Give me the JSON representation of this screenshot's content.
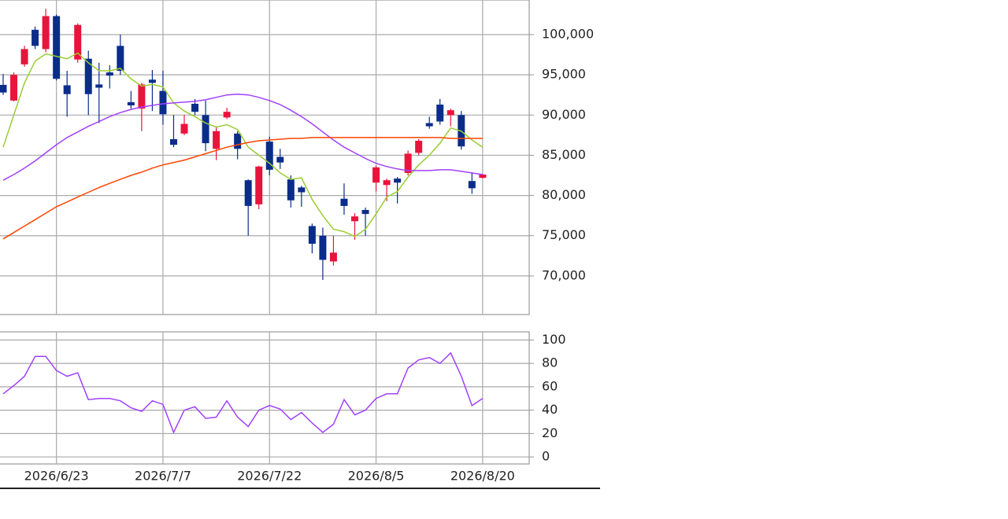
{
  "chart_data": [
    {
      "type": "candlestick",
      "up_color": "#e8143c",
      "down_color": "#0a2d8a",
      "ylim": [
        65200,
        104300
      ],
      "yticks": [
        {
          "value": 70000,
          "label": "70,000"
        },
        {
          "value": 75000,
          "label": "75,000"
        },
        {
          "value": 80000,
          "label": "80,000"
        },
        {
          "value": 85000,
          "label": "85,000"
        },
        {
          "value": 90000,
          "label": "90,000"
        },
        {
          "value": 95000,
          "label": "95,000"
        },
        {
          "value": 100000,
          "label": "100,000"
        }
      ],
      "grid": true,
      "open": [
        93750,
        91800,
        96300,
        100600,
        98200,
        102300,
        93700,
        96900,
        97000,
        93800,
        95300,
        98600,
        91600,
        90800,
        94400,
        93000,
        87000,
        87700,
        91400,
        90000,
        85800,
        89700,
        87700,
        81900,
        78900,
        86700,
        84800,
        82000,
        81000,
        76200,
        75000,
        71800,
        79600,
        76800,
        78200,
        81600,
        81300,
        82100,
        82800,
        85300,
        89000,
        91300,
        90000,
        90000,
        81800,
        82200
      ],
      "high": [
        95100,
        95300,
        98600,
        101000,
        103200,
        102500,
        95500,
        101400,
        98000,
        96500,
        96200,
        100000,
        93000,
        94000,
        95600,
        95500,
        90000,
        90000,
        92000,
        91800,
        88500,
        90900,
        88000,
        82000,
        83700,
        87300,
        85800,
        82500,
        81200,
        76500,
        76000,
        75000,
        81500,
        77800,
        78500,
        83700,
        82100,
        82300,
        85600,
        87000,
        89800,
        92000,
        90800,
        90500,
        82800,
        82700
      ],
      "low": [
        92500,
        91700,
        96000,
        98200,
        97800,
        94300,
        89800,
        96500,
        90000,
        89000,
        93300,
        95000,
        90800,
        88000,
        90500,
        88800,
        86000,
        87500,
        90000,
        85500,
        84400,
        89500,
        84500,
        75000,
        78300,
        82500,
        83300,
        78500,
        78600,
        72800,
        69500,
        71300,
        77600,
        74500,
        75000,
        80500,
        79300,
        79000,
        82500,
        85000,
        88300,
        88800,
        88600,
        85700,
        80200,
        82100
      ],
      "close": [
        92800,
        95000,
        98200,
        98600,
        102300,
        94500,
        92600,
        101200,
        92600,
        93400,
        94900,
        95500,
        91200,
        93800,
        94000,
        90100,
        86300,
        88900,
        90400,
        86500,
        88000,
        90400,
        85800,
        78700,
        83600,
        83200,
        84100,
        79400,
        80400,
        74000,
        72000,
        72900,
        78700,
        77400,
        77700,
        83500,
        81900,
        81600,
        85200,
        86800,
        88600,
        89200,
        90600,
        86100,
        80900,
        82600
      ],
      "series": [
        {
          "color": "#9acd32",
          "values": [
            86000,
            90000,
            94000,
            96700,
            97600,
            97300,
            97000,
            97700,
            96500,
            95500,
            95500,
            95800,
            94500,
            93600,
            93800,
            93500,
            91500,
            90500,
            89800,
            89000,
            88500,
            88800,
            88200,
            86000,
            85000,
            84000,
            82800,
            82000,
            82200,
            79500,
            77500,
            75800,
            75500,
            74900,
            75800,
            77700,
            79800,
            80500,
            82300,
            83800,
            85000,
            86500,
            88400,
            88000,
            86900,
            86000
          ]
        },
        {
          "color": "#a040ff",
          "values": [
            81900,
            82600,
            83400,
            84300,
            85300,
            86300,
            87200,
            87900,
            88600,
            89200,
            89800,
            90300,
            90700,
            91000,
            91200,
            91400,
            91500,
            91600,
            91700,
            91900,
            92200,
            92500,
            92600,
            92500,
            92200,
            91800,
            91300,
            90600,
            89800,
            88900,
            87900,
            86900,
            86000,
            85300,
            84600,
            84000,
            83600,
            83300,
            83100,
            83100,
            83100,
            83200,
            83200,
            83000,
            82800,
            82600
          ]
        },
        {
          "color": "#ff4500",
          "values": [
            74600,
            75400,
            76200,
            77000,
            77800,
            78600,
            79200,
            79800,
            80400,
            81000,
            81500,
            82000,
            82500,
            82900,
            83400,
            83800,
            84100,
            84400,
            84800,
            85200,
            85600,
            86000,
            86300,
            86600,
            86800,
            86900,
            87000,
            87100,
            87100,
            87200,
            87200,
            87200,
            87200,
            87200,
            87200,
            87200,
            87200,
            87200,
            87200,
            87200,
            87200,
            87200,
            87100,
            87100,
            87100,
            87100
          ]
        }
      ]
    },
    {
      "type": "line",
      "categories": [
        null,
        null,
        null,
        null,
        null,
        "2026/6/23",
        null,
        null,
        null,
        null,
        null,
        null,
        null,
        null,
        null,
        "2026/7/7",
        null,
        null,
        null,
        null,
        null,
        null,
        null,
        null,
        null,
        "2026/7/22",
        null,
        null,
        null,
        null,
        null,
        null,
        null,
        null,
        null,
        "2026/8/5",
        null,
        null,
        null,
        null,
        null,
        null,
        null,
        null,
        null,
        "2026/8/20"
      ],
      "ylim": [
        -6,
        107
      ],
      "yticks": [
        0,
        20,
        40,
        60,
        80,
        100
      ],
      "grid": true,
      "series": [
        {
          "color": "#a040ff",
          "values": [
            54,
            61,
            69,
            86,
            86,
            74,
            69,
            72,
            49,
            50,
            50,
            48,
            42,
            39,
            48,
            45,
            21,
            40,
            43,
            33,
            34,
            48,
            34,
            26,
            40,
            44,
            41,
            32,
            38,
            29,
            21,
            28,
            49,
            36,
            40,
            50,
            54,
            54,
            76,
            83,
            85,
            80,
            89,
            69,
            44,
            50
          ]
        }
      ]
    }
  ]
}
